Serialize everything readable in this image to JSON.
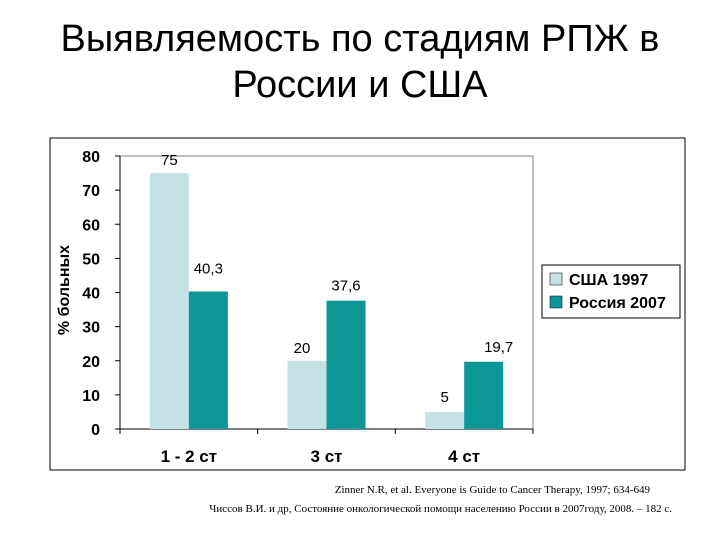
{
  "title": {
    "line1": "Выявляемость по стадиям РПЖ в",
    "line2": "России и США"
  },
  "chart_data": {
    "type": "bar",
    "categories": [
      "1 - 2 ст",
      "3 ст",
      "4 ст"
    ],
    "series": [
      {
        "name": "США 1997",
        "values": [
          75,
          20,
          5
        ],
        "labels": [
          "75",
          "20",
          "5"
        ],
        "color": "#c4e2e4"
      },
      {
        "name": "Россия 2007",
        "values": [
          40.3,
          37.6,
          19.7
        ],
        "labels": [
          "40,3",
          "37,6",
          "19,7"
        ],
        "color": "#0d9696"
      }
    ],
    "ylabel": "% больных",
    "xlabel": "",
    "ylim": [
      0,
      80
    ],
    "yticks": [
      0,
      10,
      20,
      30,
      40,
      50,
      60,
      70,
      80
    ],
    "grid": false,
    "legend_position": "right"
  },
  "references": [
    "Zinner N.R, et al. Everyone is Guide to Cancer Therapy, 1997; 634-649",
    "Чиссов В.И. и др, Состояние онкологической помощи населению России в 2007году, 2008. – 182 с."
  ]
}
